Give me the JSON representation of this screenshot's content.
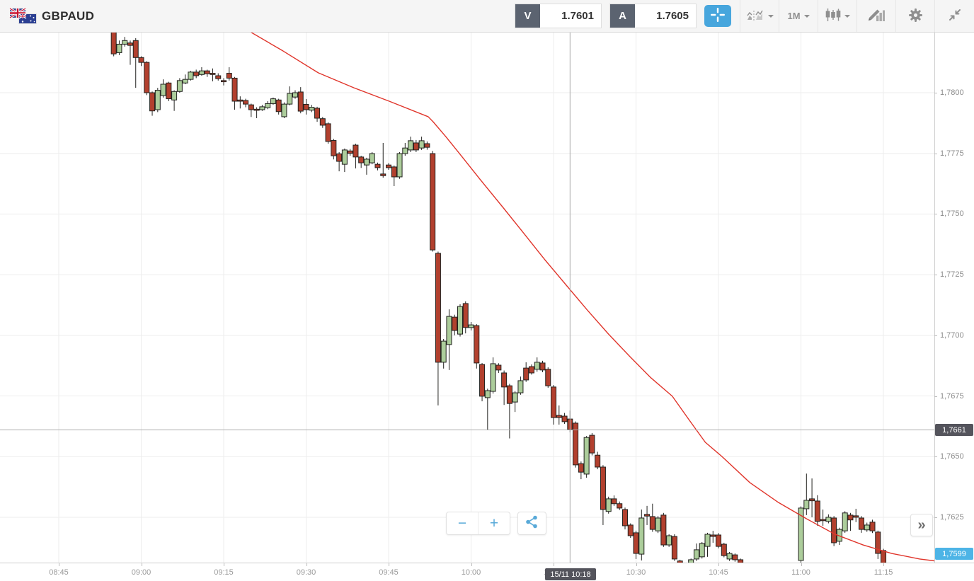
{
  "header": {
    "symbol": "GBPAUD",
    "flag_icon": "gb-au-flags",
    "bid": {
      "label": "V",
      "value": "1.7601"
    },
    "ask": {
      "label": "A",
      "value": "1.7605"
    },
    "tools": {
      "crosshair_icon": "crosshair",
      "compare_icon": "compare-charts",
      "timeframe": "1M",
      "chart_type_icon": "candlestick",
      "draw_icon": "draw-indicator",
      "settings_icon": "gear",
      "collapse_icon": "collapse-arrows"
    }
  },
  "overlay": {
    "zoom_out_label": "−",
    "zoom_in_label": "+",
    "share_icon": "share",
    "expand_label": "»"
  },
  "chart_data": {
    "type": "candlestick",
    "symbol": "GBPAUD",
    "interval": "1M",
    "date": "15/11",
    "x_axis": {
      "tick_labels": [
        "08:45",
        "09:00",
        "09:15",
        "09:30",
        "09:45",
        "10:00",
        "10:15",
        "10:30",
        "10:45",
        "11:00",
        "11:15"
      ]
    },
    "y_axis": {
      "tick_labels": [
        "1,7800",
        "1,7775",
        "1,7750",
        "1,7725",
        "1,7700",
        "1,7675",
        "1,7650",
        "1,7625"
      ],
      "visible_range": [
        1.7607,
        1.7826
      ]
    },
    "crosshair": {
      "datetime_label": "15/11 10:18",
      "time": "10:18",
      "price": 1.7661,
      "price_label": "1,7661"
    },
    "current_price": {
      "value": 1.7599,
      "label": "1,7599"
    },
    "colors": {
      "up_fill": "#accd9b",
      "down_fill": "#b2402e",
      "body_stroke": "#22221f",
      "grid": "#ededed",
      "crosshair": "#ababab",
      "ma": "#e0352b",
      "badge_dark": "#54545c",
      "badge_blue": "#4db4e6"
    },
    "ma_line": {
      "name": "moving-average",
      "points": [
        [
          34.6,
          1.78254
        ],
        [
          40.8,
          1.78172
        ],
        [
          47.2,
          1.78082
        ],
        [
          53.7,
          1.7802
        ],
        [
          60.1,
          1.77965
        ],
        [
          67.2,
          1.77901
        ],
        [
          68.1,
          1.7788
        ],
        [
          70.4,
          1.77819
        ],
        [
          73.0,
          1.77746
        ],
        [
          76.8,
          1.77638
        ],
        [
          80.7,
          1.7753
        ],
        [
          84.6,
          1.7742
        ],
        [
          88.4,
          1.77312
        ],
        [
          92.3,
          1.77207
        ],
        [
          96.1,
          1.77105
        ],
        [
          100.0,
          1.77005
        ],
        [
          103.9,
          1.76912
        ],
        [
          107.7,
          1.76825
        ],
        [
          111.6,
          1.76749
        ],
        [
          114.8,
          1.76647
        ],
        [
          117.6,
          1.76559
        ],
        [
          120.6,
          1.76501
        ],
        [
          125.7,
          1.76393
        ],
        [
          130.9,
          1.76311
        ],
        [
          136.0,
          1.76244
        ],
        [
          141.2,
          1.7618
        ],
        [
          146.3,
          1.76136
        ],
        [
          151.5,
          1.76101
        ],
        [
          156.6,
          1.76078
        ],
        [
          159.8,
          1.76069
        ]
      ]
    },
    "candles": [
      [
        "08:55",
        1.7825,
        1.7827,
        1.7815,
        1.7816
      ],
      [
        "08:56",
        1.78165,
        1.78215,
        1.78155,
        1.782
      ],
      [
        "08:57",
        1.782,
        1.7823,
        1.7819,
        1.78215
      ],
      [
        "08:58",
        1.78205,
        1.78215,
        1.78115,
        1.78195
      ],
      [
        "08:59",
        1.78215,
        1.78225,
        1.7802,
        1.78145
      ],
      [
        "09:00",
        1.78145,
        1.7815,
        1.7811,
        1.78125
      ],
      [
        "09:01",
        1.78125,
        1.7813,
        1.7799,
        1.78
      ],
      [
        "09:02",
        1.78,
        1.78005,
        1.77905,
        1.77925
      ],
      [
        "09:03",
        1.7793,
        1.7802,
        1.7792,
        1.7801
      ],
      [
        "09:04",
        1.77988,
        1.78055,
        1.7798,
        1.78035
      ],
      [
        "09:05",
        1.7804,
        1.78045,
        1.77965,
        1.77975
      ],
      [
        "09:06",
        1.7797,
        1.7801,
        1.77925,
        1.78005
      ],
      [
        "09:07",
        1.78005,
        1.7806,
        1.78,
        1.7805
      ],
      [
        "09:08",
        1.7804,
        1.78075,
        1.78035,
        1.78055
      ],
      [
        "09:09",
        1.78055,
        1.7809,
        1.7805,
        1.78085
      ],
      [
        "09:10",
        1.78085,
        1.78095,
        1.7806,
        1.7807
      ],
      [
        "09:11",
        1.78075,
        1.78105,
        1.7807,
        1.7809
      ],
      [
        "09:12",
        1.7809,
        1.78095,
        1.78065,
        1.78078
      ],
      [
        "09:13",
        1.7808,
        1.781,
        1.78047,
        1.78075
      ],
      [
        "09:14",
        1.7807,
        1.7808,
        1.7805,
        1.78058
      ],
      [
        "09:15",
        1.7805,
        1.7806,
        1.7803,
        1.78045
      ],
      [
        "09:16",
        1.7808,
        1.78105,
        1.7805,
        1.7806
      ],
      [
        "09:17",
        1.7806,
        1.78065,
        1.7793,
        1.77965
      ],
      [
        "09:18",
        1.7797,
        1.77985,
        1.77935,
        1.77965
      ],
      [
        "09:19",
        1.77968,
        1.77975,
        1.7794,
        1.77953
      ],
      [
        "09:20",
        1.7795,
        1.77955,
        1.779,
        1.7793
      ],
      [
        "09:21",
        1.77932,
        1.7794,
        1.77895,
        1.77928
      ],
      [
        "09:22",
        1.7793,
        1.7795,
        1.77925,
        1.77942
      ],
      [
        "09:23",
        1.77938,
        1.77965,
        1.77932,
        1.77955
      ],
      [
        "09:24",
        1.77955,
        1.7798,
        1.7795,
        1.77975
      ],
      [
        "09:25",
        1.7797,
        1.77975,
        1.7791,
        1.77922
      ],
      [
        "09:26",
        1.77901,
        1.7796,
        1.77895,
        1.77953
      ],
      [
        "09:27",
        1.77953,
        1.78026,
        1.77948,
        1.77997
      ],
      [
        "09:28",
        1.77982,
        1.7801,
        1.77975,
        1.78
      ],
      [
        "09:29",
        1.78003,
        1.78023,
        1.77915,
        1.77924
      ],
      [
        "09:30",
        1.77952,
        1.77974,
        1.7791,
        1.7793
      ],
      [
        "09:31",
        1.77928,
        1.7795,
        1.7792,
        1.7794
      ],
      [
        "09:32",
        1.77936,
        1.77942,
        1.7788,
        1.77895
      ],
      [
        "09:33",
        1.77893,
        1.779,
        1.77855,
        1.77866
      ],
      [
        "09:34",
        1.77872,
        1.77878,
        1.7779,
        1.77799
      ],
      [
        "09:35",
        1.77803,
        1.7781,
        1.77725,
        1.7774
      ],
      [
        "09:36",
        1.77748,
        1.77755,
        1.77676,
        1.77717
      ],
      [
        "09:37",
        1.77705,
        1.7777,
        1.77673,
        1.77764
      ],
      [
        "09:38",
        1.7776,
        1.77768,
        1.7774,
        1.7775
      ],
      [
        "09:39",
        1.77784,
        1.7779,
        1.77688,
        1.77735
      ],
      [
        "09:40",
        1.77735,
        1.7774,
        1.7769,
        1.77711
      ],
      [
        "09:41",
        1.77702,
        1.77732,
        1.77662,
        1.77726
      ],
      [
        "09:42",
        1.77711,
        1.77755,
        1.77705,
        1.77749
      ],
      [
        "09:43",
        1.77705,
        1.77712,
        1.7768,
        1.77691
      ],
      [
        "09:44",
        1.77665,
        1.77793,
        1.7765,
        1.77658
      ],
      [
        "09:45",
        1.77702,
        1.7771,
        1.77682,
        1.77691
      ],
      [
        "09:46",
        1.77694,
        1.777,
        1.77615,
        1.77653
      ],
      [
        "09:47",
        1.77653,
        1.77755,
        1.77645,
        1.77749
      ],
      [
        "09:48",
        1.77749,
        1.77793,
        1.7774,
        1.77772
      ],
      [
        "09:49",
        1.77764,
        1.77819,
        1.77755,
        1.77802
      ],
      [
        "09:50",
        1.77793,
        1.77805,
        1.77755,
        1.77764
      ],
      [
        "09:51",
        1.77772,
        1.77819,
        1.77764,
        1.77802
      ],
      [
        "09:52",
        1.7779,
        1.77799,
        1.77765,
        1.77775
      ],
      [
        "09:53",
        1.77749,
        1.7776,
        1.77345,
        1.77352
      ],
      [
        "09:54",
        1.77338,
        1.77345,
        1.76711,
        1.76889
      ],
      [
        "09:55",
        1.76889,
        1.76985,
        1.76863,
        1.76976
      ],
      [
        "09:56",
        1.76962,
        1.77107,
        1.76857,
        1.77078
      ],
      [
        "09:57",
        1.77075,
        1.77085,
        1.77,
        1.7702
      ],
      [
        "09:58",
        1.77005,
        1.77128,
        1.76995,
        1.77119
      ],
      [
        "09:59",
        1.77131,
        1.7714,
        1.77008,
        1.77032
      ],
      [
        "10:00",
        1.77032,
        1.77055,
        1.7702,
        1.77043
      ],
      [
        "10:01",
        1.7704,
        1.77046,
        1.76863,
        1.76886
      ],
      [
        "10:02",
        1.7688,
        1.76886,
        1.76728,
        1.76749
      ],
      [
        "10:03",
        1.76743,
        1.7678,
        1.76611,
        1.76772
      ],
      [
        "10:04",
        1.76769,
        1.76909,
        1.7676,
        1.76883
      ],
      [
        "10:05",
        1.76877,
        1.76885,
        1.76845,
        1.76857
      ],
      [
        "10:06",
        1.76845,
        1.76855,
        1.76713,
        1.76787
      ],
      [
        "10:07",
        1.76792,
        1.768,
        1.76575,
        1.76719
      ],
      [
        "10:08",
        1.76725,
        1.7677,
        1.76684,
        1.76763
      ],
      [
        "10:09",
        1.76763,
        1.7683,
        1.76755,
        1.76813
      ],
      [
        "10:10",
        1.76865,
        1.76889,
        1.76808,
        1.76816
      ],
      [
        "10:11",
        1.76871,
        1.7688,
        1.76838,
        1.76845
      ],
      [
        "10:12",
        1.7686,
        1.76909,
        1.7685,
        1.76889
      ],
      [
        "10:13",
        1.76886,
        1.76895,
        1.76848,
        1.76857
      ],
      [
        "10:14",
        1.7686,
        1.76868,
        1.76784,
        1.76792
      ],
      [
        "10:15",
        1.76787,
        1.76795,
        1.76632,
        1.76661
      ],
      [
        "10:16",
        1.7667,
        1.76711,
        1.76632,
        1.76661
      ],
      [
        "10:17",
        1.76667,
        1.7668,
        1.76635,
        1.76644
      ],
      [
        "10:18",
        1.76655,
        1.7669,
        1.766,
        1.76611
      ],
      [
        "10:19",
        1.76638,
        1.76645,
        1.76455,
        1.76466
      ],
      [
        "10:20",
        1.76471,
        1.7648,
        1.76407,
        1.76436
      ],
      [
        "10:21",
        1.76428,
        1.76585,
        1.76413,
        1.76579
      ],
      [
        "10:22",
        1.76588,
        1.76597,
        1.76505,
        1.76515
      ],
      [
        "10:23",
        1.76506,
        1.7652,
        1.76448,
        1.76457
      ],
      [
        "10:24",
        1.76457,
        1.76465,
        1.76218,
        1.76282
      ],
      [
        "10:25",
        1.76274,
        1.76335,
        1.76265,
        1.76326
      ],
      [
        "10:26",
        1.76326,
        1.7634,
        1.76297,
        1.76306
      ],
      [
        "10:27",
        1.76306,
        1.76315,
        1.7628,
        1.76288
      ],
      [
        "10:28",
        1.76282,
        1.7629,
        1.762,
        1.76215
      ],
      [
        "10:29",
        1.76218,
        1.76225,
        1.76165,
        1.76174
      ],
      [
        "10:30",
        1.76186,
        1.76195,
        1.76078,
        1.76101
      ],
      [
        "10:31",
        1.76098,
        1.76282,
        1.76072,
        1.76247
      ],
      [
        "10:32",
        1.76262,
        1.76297,
        1.76218,
        1.76255
      ],
      [
        "10:33",
        1.76253,
        1.76306,
        1.7619,
        1.762
      ],
      [
        "10:34",
        1.76194,
        1.76255,
        1.76185,
        1.76247
      ],
      [
        "10:35",
        1.76259,
        1.76268,
        1.76128,
        1.76136
      ],
      [
        "10:36",
        1.76136,
        1.7618,
        1.76128,
        1.76174
      ],
      [
        "10:37",
        1.76171,
        1.7618,
        1.7607,
        1.76078
      ],
      [
        "10:38",
        1.7607,
        1.76075,
        1.7603,
        1.7604
      ],
      [
        "10:39",
        1.7604,
        1.7606,
        1.7602,
        1.76055
      ],
      [
        "10:40",
        1.76055,
        1.7608,
        1.7604,
        1.76075
      ],
      [
        "10:41",
        1.76078,
        1.76142,
        1.7607,
        1.76116
      ],
      [
        "10:42",
        1.76087,
        1.76148,
        1.7608,
        1.76142
      ],
      [
        "10:43",
        1.7613,
        1.76186,
        1.76087,
        1.7618
      ],
      [
        "10:44",
        1.76177,
        1.76194,
        1.76145,
        1.76171
      ],
      [
        "10:45",
        1.76177,
        1.76185,
        1.76122,
        1.7613
      ],
      [
        "10:46",
        1.76139,
        1.76145,
        1.76085,
        1.76092
      ],
      [
        "10:47",
        1.76078,
        1.76107,
        1.7607,
        1.76101
      ],
      [
        "10:48",
        1.76095,
        1.76101,
        1.76067,
        1.76075
      ],
      [
        "10:49",
        1.76075,
        1.7608,
        1.7601,
        1.7602
      ],
      [
        "10:50",
        1.7602,
        1.7603,
        1.7597,
        1.7598
      ],
      [
        "10:51",
        1.7598,
        1.7599,
        1.7594,
        1.7595
      ],
      [
        "10:52",
        1.7595,
        1.75975,
        1.7593,
        1.75965
      ],
      [
        "10:53",
        1.75965,
        1.75975,
        1.7592,
        1.7594
      ],
      [
        "10:54",
        1.7594,
        1.7595,
        1.759,
        1.75915
      ],
      [
        "10:55",
        1.75915,
        1.7595,
        1.75905,
        1.7594
      ],
      [
        "10:56",
        1.7594,
        1.7598,
        1.7593,
        1.7597
      ],
      [
        "10:57",
        1.7597,
        1.76005,
        1.7596,
        1.75995
      ],
      [
        "10:58",
        1.75995,
        1.7603,
        1.75985,
        1.7602
      ],
      [
        "10:59",
        1.7602,
        1.7606,
        1.7601,
        1.7605
      ],
      [
        "11:00",
        1.76072,
        1.76295,
        1.7604,
        1.76288
      ],
      [
        "11:01",
        1.76285,
        1.7643,
        1.76259,
        1.7632
      ],
      [
        "11:02",
        1.76326,
        1.7641,
        1.7625,
        1.76318
      ],
      [
        "11:03",
        1.76317,
        1.76341,
        1.76215,
        1.76233
      ],
      [
        "11:04",
        1.76241,
        1.76282,
        1.76215,
        1.76236
      ],
      [
        "11:05",
        1.76233,
        1.76262,
        1.76225,
        1.7625
      ],
      [
        "11:06",
        1.76247,
        1.76255,
        1.76131,
        1.76145
      ],
      [
        "11:07",
        1.76151,
        1.76207,
        1.76136,
        1.762
      ],
      [
        "11:08",
        1.76194,
        1.76275,
        1.76186,
        1.76268
      ],
      [
        "11:09",
        1.76259,
        1.76268,
        1.76194,
        1.76239
      ],
      [
        "11:10",
        1.76256,
        1.76285,
        1.7623,
        1.7625
      ],
      [
        "11:11",
        1.76247,
        1.76255,
        1.76186,
        1.762
      ],
      [
        "11:12",
        1.76198,
        1.76228,
        1.7619,
        1.76218
      ],
      [
        "11:13",
        1.7623,
        1.7624,
        1.76185,
        1.76194
      ],
      [
        "11:14",
        1.76189,
        1.76195,
        1.76078,
        1.76101
      ],
      [
        "11:15",
        1.76113,
        1.7612,
        1.75985,
        1.7599
      ]
    ]
  }
}
